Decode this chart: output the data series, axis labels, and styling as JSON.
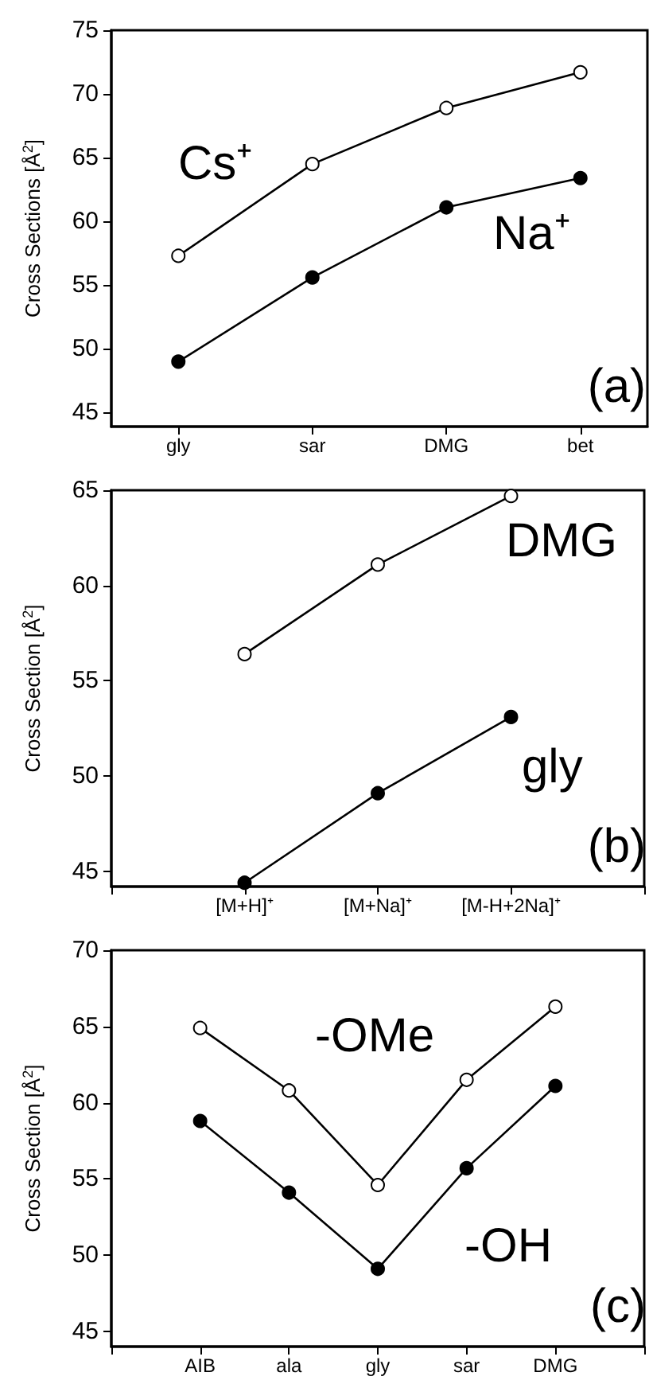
{
  "chart_data": [
    {
      "type": "line",
      "ylabel": "Cross Sections [Å$^{2}$]",
      "categories": [
        "gly",
        "sar",
        "DMG",
        "bet"
      ],
      "ylim": [
        43.9,
        75
      ],
      "yticks": [
        45,
        50,
        55,
        60,
        65,
        70,
        75
      ],
      "marker": "circle",
      "annotations": [
        "(a)"
      ],
      "series": [
        {
          "name": "Cs⁺",
          "color": "#000000",
          "values": [
            57.3,
            64.5,
            68.9,
            71.7
          ]
        },
        {
          "name": "Na⁺",
          "color": "#000000",
          "values": [
            49.0,
            55.6,
            61.1,
            63.4
          ]
        }
      ]
    },
    {
      "type": "line",
      "ylabel": "Cross Section [Å$^{2}$]",
      "categories": [
        null,
        "[M+H]⁺",
        "[M+Na]⁺",
        "[M-H+2Na]⁺",
        null
      ],
      "ylim": [
        44.2,
        65
      ],
      "yticks": [
        45,
        50,
        55,
        60,
        65
      ],
      "marker": "circle",
      "annotations": [
        "(b)"
      ],
      "series": [
        {
          "name": "DMG",
          "color": "#000000",
          "values": [
            null,
            56.4,
            61.1,
            64.7,
            null
          ]
        },
        {
          "name": "gly",
          "color": "#000000",
          "values": [
            null,
            44.4,
            49.1,
            53.1,
            null
          ]
        }
      ]
    },
    {
      "type": "line",
      "ylabel": "Cross Section [Å$^{2}$]",
      "categories": [
        null,
        "AIB",
        "ala",
        "gly",
        "sar",
        "DMG",
        null
      ],
      "ylim": [
        44,
        70
      ],
      "yticks": [
        45,
        50,
        55,
        60,
        65,
        70
      ],
      "marker": "circle",
      "annotations": [
        "(c)"
      ],
      "series": [
        {
          "name": "-OMe",
          "color": "#000000",
          "values": [
            null,
            64.9,
            60.8,
            54.6,
            61.5,
            66.3,
            null
          ]
        },
        {
          "name": "-OH",
          "color": "#000000",
          "values": [
            null,
            58.8,
            54.1,
            49.1,
            55.7,
            61.1,
            null
          ]
        }
      ]
    }
  ]
}
